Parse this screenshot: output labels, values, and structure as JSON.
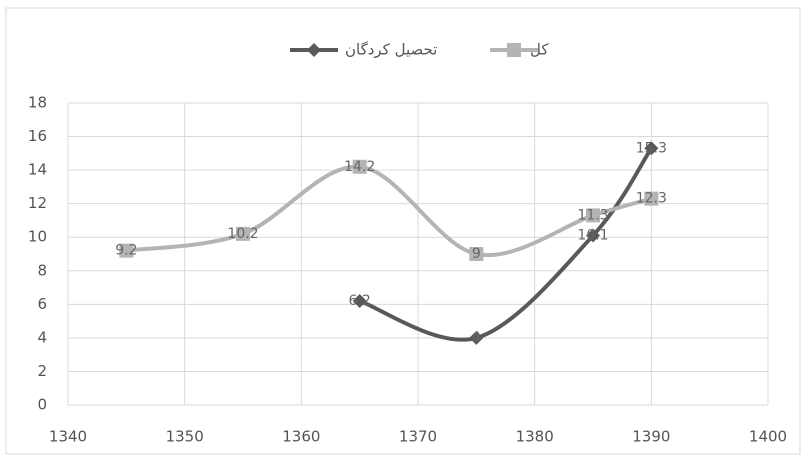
{
  "chart_data": {
    "type": "scatter",
    "smooth": true,
    "grid": true,
    "xlim": [
      1340,
      1400
    ],
    "xticks": [
      1340,
      1350,
      1360,
      1370,
      1380,
      1390,
      1400
    ],
    "ylim": [
      0,
      18
    ],
    "yticks": [
      0,
      2,
      4,
      6,
      8,
      10,
      12,
      14,
      16,
      18
    ],
    "series": [
      {
        "name": "تحصیل کردگان",
        "color": "#595959",
        "marker": "diamond",
        "x": [
          1365,
          1375,
          1385,
          1390
        ],
        "values": [
          6.2,
          4,
          10.1,
          15.3
        ]
      },
      {
        "name": "کل",
        "color": "#b4b4b4",
        "marker": "square",
        "x": [
          1345,
          1355,
          1365,
          1375,
          1385,
          1390
        ],
        "values": [
          9.2,
          10.2,
          14.2,
          9,
          11.3,
          12.3
        ]
      }
    ]
  }
}
